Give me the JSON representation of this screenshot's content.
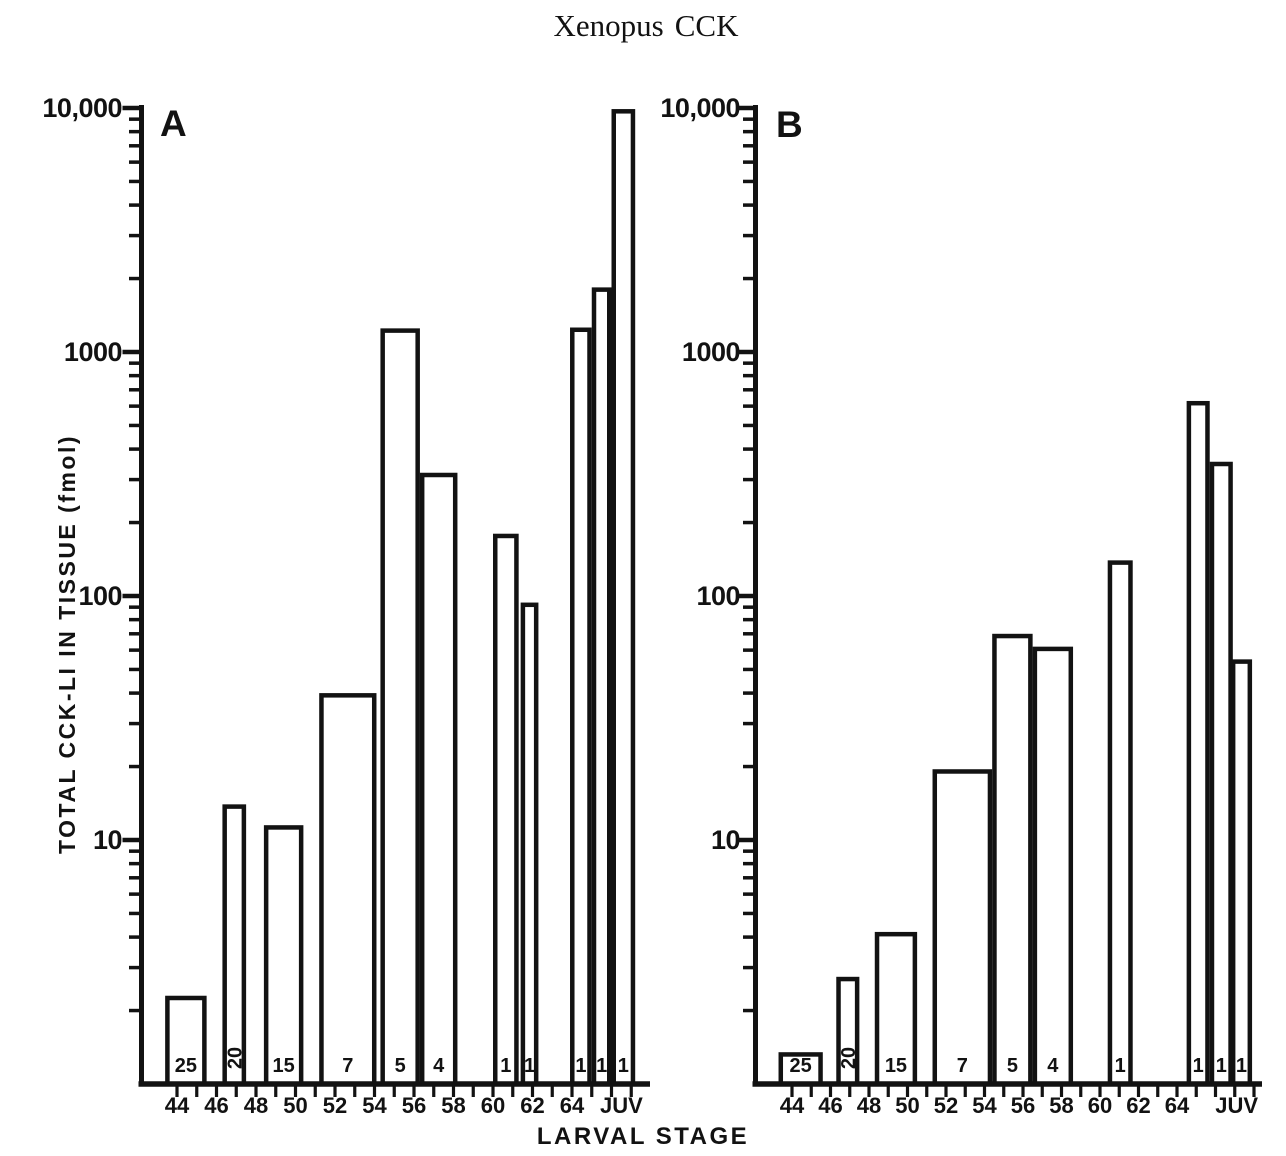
{
  "title": {
    "species": "Xenopus",
    "rest": "CCK"
  },
  "y_axis_title": "TOTAL CCK-LI IN TISSUE (fmol)",
  "x_axis_title": "LARVAL STAGE",
  "colors": {
    "ink": "#121212",
    "paper": "#ffffff"
  },
  "chart_data": [
    {
      "type": "bar",
      "panel": "A",
      "title": "Xenopus CCK",
      "ylabel": "TOTAL CCK-LI IN TISSUE (fmol)",
      "xlabel": "LARVAL STAGE",
      "yscale": "log",
      "ylim": [
        1,
        10000
      ],
      "grid": false,
      "legend": "none",
      "y_ticks": [
        {
          "label": "10,000",
          "value": 10000
        },
        {
          "label": "1000",
          "value": 1000
        },
        {
          "label": "100",
          "value": 100
        },
        {
          "label": "10",
          "value": 10
        }
      ],
      "x_ticks": [
        {
          "label": "44",
          "stage": 44
        },
        {
          "label": "46",
          "stage": 46
        },
        {
          "label": "48",
          "stage": 48
        },
        {
          "label": "50",
          "stage": 50
        },
        {
          "label": "52",
          "stage": 52
        },
        {
          "label": "54",
          "stage": 54
        },
        {
          "label": "56",
          "stage": 56
        },
        {
          "label": "58",
          "stage": 58
        },
        {
          "label": "60",
          "stage": 60
        },
        {
          "label": "62",
          "stage": 62
        },
        {
          "label": "64",
          "stage": 64
        },
        {
          "label": "JUV",
          "stage": 66.5
        }
      ],
      "bars": [
        {
          "stage_from": 43.4,
          "stage_to": 45.5,
          "value": 2.3,
          "n": "25"
        },
        {
          "stage_from": 46.3,
          "stage_to": 47.5,
          "value": 14,
          "n": "20",
          "n_rotated": true
        },
        {
          "stage_from": 48.4,
          "stage_to": 50.4,
          "value": 11.5,
          "n": "15"
        },
        {
          "stage_from": 51.2,
          "stage_to": 54.1,
          "value": 40,
          "n": "7"
        },
        {
          "stage_from": 54.3,
          "stage_to": 56.3,
          "value": 1250,
          "n": "5"
        },
        {
          "stage_from": 56.3,
          "stage_to": 58.2,
          "value": 320,
          "n": "4"
        },
        {
          "stage_from": 60.0,
          "stage_to": 61.3,
          "value": 180,
          "n": "1"
        },
        {
          "stage_from": 61.4,
          "stage_to": 62.3,
          "value": 94,
          "n": "1"
        },
        {
          "stage_from": 63.9,
          "stage_to": 65.0,
          "value": 1260,
          "n": "1"
        },
        {
          "stage_from": 65.0,
          "stage_to": 66.0,
          "value": 1840,
          "n": "1"
        },
        {
          "stage_from": 66.0,
          "stage_to": 67.2,
          "value": 9900,
          "n": "1"
        }
      ]
    },
    {
      "type": "bar",
      "panel": "B",
      "title": "Xenopus CCK",
      "ylabel": "TOTAL CCK-LI IN TISSUE (fmol)",
      "xlabel": "LARVAL STAGE",
      "yscale": "log",
      "ylim": [
        1,
        10000
      ],
      "grid": false,
      "legend": "none",
      "y_ticks": [
        {
          "label": "10,000",
          "value": 10000
        },
        {
          "label": "1000",
          "value": 1000
        },
        {
          "label": "100",
          "value": 100
        },
        {
          "label": "10",
          "value": 10
        }
      ],
      "x_ticks": [
        {
          "label": "44",
          "stage": 44
        },
        {
          "label": "46",
          "stage": 46
        },
        {
          "label": "48",
          "stage": 48
        },
        {
          "label": "50",
          "stage": 50
        },
        {
          "label": "52",
          "stage": 52
        },
        {
          "label": "54",
          "stage": 54
        },
        {
          "label": "56",
          "stage": 56
        },
        {
          "label": "58",
          "stage": 58
        },
        {
          "label": "60",
          "stage": 60
        },
        {
          "label": "62",
          "stage": 62
        },
        {
          "label": "64",
          "stage": 64
        },
        {
          "label": "JUV",
          "stage": 67.1
        }
      ],
      "bars": [
        {
          "stage_from": 43.3,
          "stage_to": 45.6,
          "value": 1.35,
          "n": "25"
        },
        {
          "stage_from": 46.3,
          "stage_to": 47.5,
          "value": 2.75,
          "n": "20",
          "n_rotated": true
        },
        {
          "stage_from": 48.3,
          "stage_to": 50.5,
          "value": 4.2,
          "n": "15"
        },
        {
          "stage_from": 51.3,
          "stage_to": 54.4,
          "value": 19.5,
          "n": "7"
        },
        {
          "stage_from": 54.4,
          "stage_to": 56.5,
          "value": 70,
          "n": "5"
        },
        {
          "stage_from": 56.5,
          "stage_to": 58.6,
          "value": 62,
          "n": "4"
        },
        {
          "stage_from": 60.4,
          "stage_to": 61.7,
          "value": 140,
          "n": "1"
        },
        {
          "stage_from": 64.5,
          "stage_to": 65.7,
          "value": 630,
          "n": "1"
        },
        {
          "stage_from": 65.7,
          "stage_to": 66.9,
          "value": 355,
          "n": "1"
        },
        {
          "stage_from": 66.8,
          "stage_to": 67.9,
          "value": 55,
          "n": "1"
        }
      ]
    }
  ]
}
